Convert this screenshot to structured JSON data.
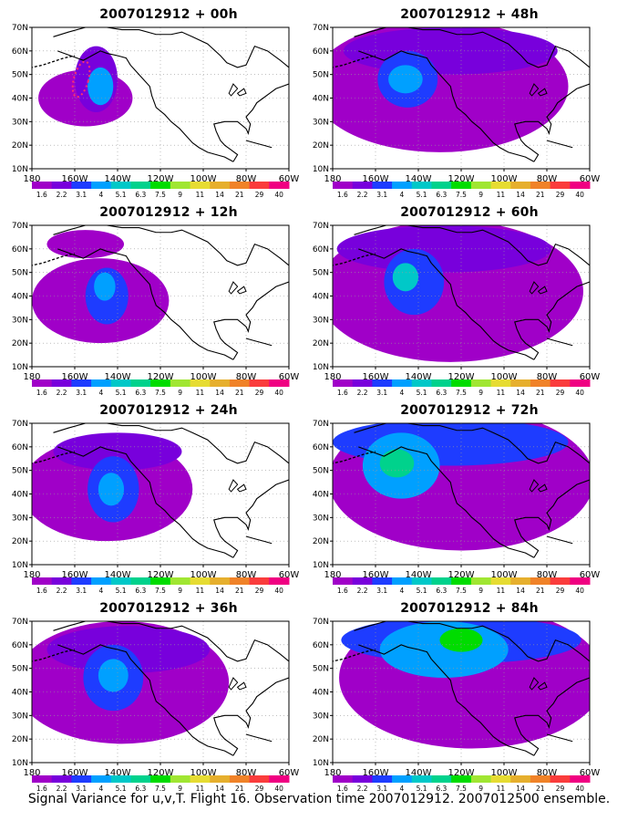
{
  "figure": {
    "caption": "Signal Variance for u,v,T. Flight 16. Observation time 2007012912. 2007012500 ensemble."
  },
  "axes": {
    "lat_labels": [
      "70N",
      "60N",
      "50N",
      "40N",
      "30N",
      "20N",
      "10N"
    ],
    "lon_labels": [
      "180",
      "160W",
      "140W",
      "120W",
      "100W",
      "80W",
      "60W"
    ]
  },
  "colorbar": {
    "labels": [
      "1.6",
      "2.2",
      "3.1",
      "4",
      "5.1",
      "6.3",
      "7.5",
      "9",
      "11",
      "14",
      "21",
      "29",
      "40"
    ],
    "colors": [
      "#a000c8",
      "#7800dc",
      "#1e3cff",
      "#00a0ff",
      "#00c8c8",
      "#00d28c",
      "#00dc00",
      "#a0e632",
      "#e6dc32",
      "#e6af2d",
      "#f08228",
      "#fa3c3c",
      "#f00082"
    ]
  },
  "panels": [
    {
      "title": "2007012912 + 00h",
      "level": 0
    },
    {
      "title": "2007012912 + 48h",
      "level": 4
    },
    {
      "title": "2007012912 + 12h",
      "level": 1
    },
    {
      "title": "2007012912 + 60h",
      "level": 5
    },
    {
      "title": "2007012912 + 24h",
      "level": 2
    },
    {
      "title": "2007012912 + 72h",
      "level": 6
    },
    {
      "title": "2007012912 + 36h",
      "level": 3
    },
    {
      "title": "2007012912 + 84h",
      "level": 7
    }
  ]
}
